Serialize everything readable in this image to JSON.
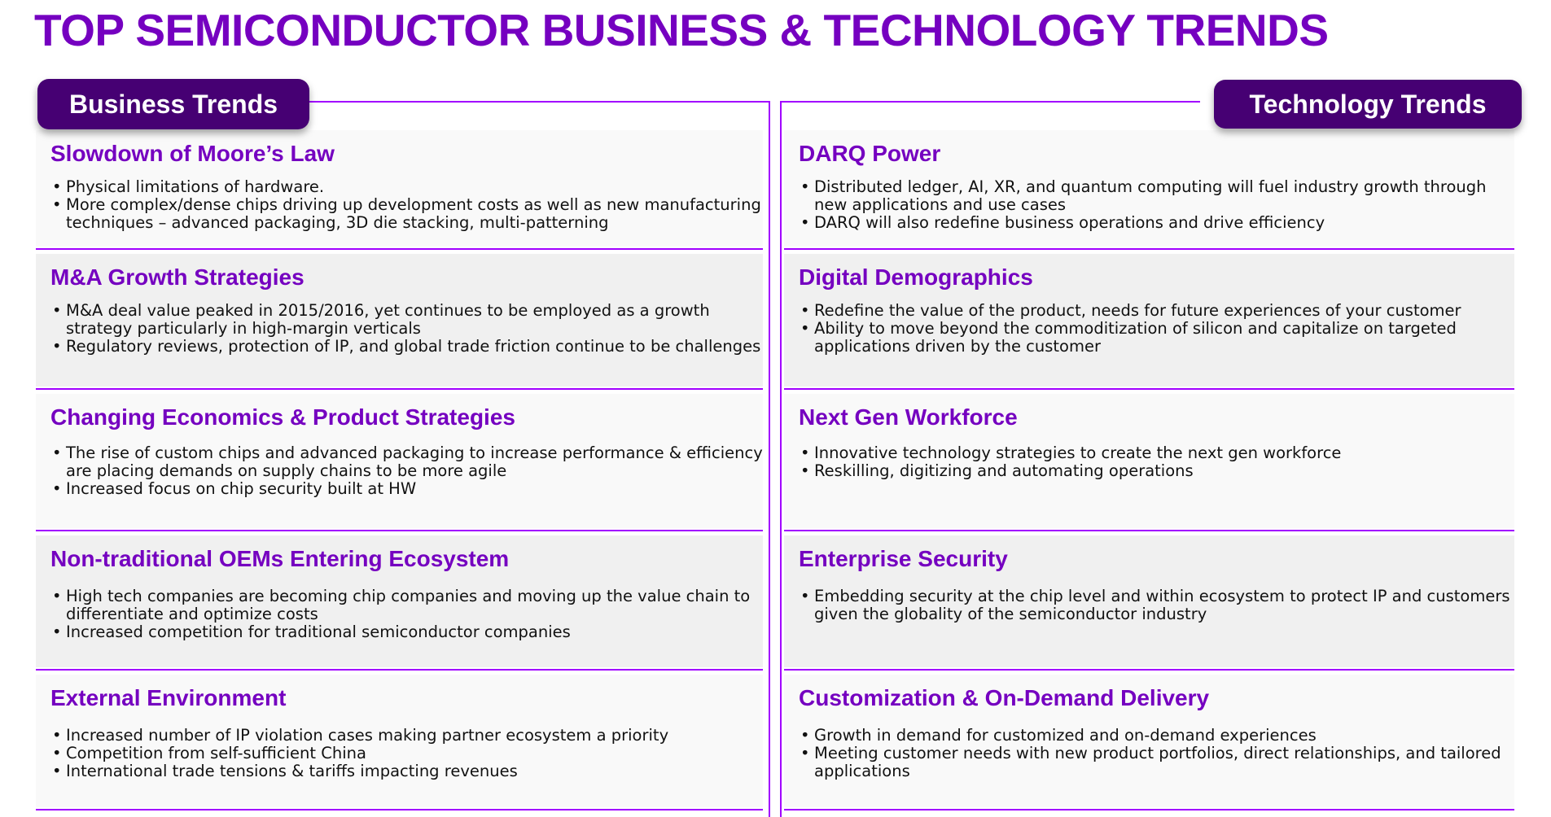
{
  "title": "TOP SEMICONDUCTOR BUSINESS & TECHNOLOGY TRENDS",
  "business": {
    "label": "Business Trends",
    "cards": [
      {
        "heading": "Slowdown of Moore’s Law",
        "bullets": [
          "Physical limitations of hardware.",
          "More complex/dense chips driving up development costs as well as new manufacturing techniques – advanced packaging, 3D die stacking, multi-patterning"
        ]
      },
      {
        "heading": "M&A Growth Strategies",
        "bullets": [
          "M&A deal value peaked in 2015/2016, yet continues to be employed as a growth strategy particularly in high-margin verticals",
          "Regulatory reviews, protection of IP, and global trade friction continue to be challenges"
        ]
      },
      {
        "heading": "Changing Economics & Product Strategies",
        "bullets": [
          "The rise of custom chips and advanced packaging to increase performance & efficiency are placing demands on supply chains to be more agile",
          "Increased focus on chip security built at HW"
        ]
      },
      {
        "heading": "Non-traditional OEMs Entering Ecosystem",
        "bullets": [
          "High tech companies are becoming chip companies and moving up the value chain to differentiate and optimize costs",
          "Increased competition for traditional semiconductor companies"
        ]
      },
      {
        "heading": "External Environment",
        "bullets": [
          "Increased number of IP violation cases making partner ecosystem a priority",
          "Competition from self-sufficient China",
          "International trade tensions & tariffs impacting revenues"
        ]
      }
    ]
  },
  "technology": {
    "label": "Technology Trends",
    "cards": [
      {
        "heading": "DARQ Power",
        "bullets": [
          "Distributed ledger, AI, XR, and quantum computing will fuel industry growth through new applications and use cases",
          "DARQ will also redefine business operations and drive efficiency"
        ]
      },
      {
        "heading": "Digital Demographics",
        "bullets": [
          "Redefine the value of the product, needs for future experiences of your customer",
          "Ability to move beyond the commoditization of silicon and capitalize on targeted applications driven by the customer"
        ]
      },
      {
        "heading": "Next Gen Workforce",
        "bullets": [
          "Innovative technology strategies to create the next gen workforce",
          "Reskilling, digitizing and automating operations"
        ]
      },
      {
        "heading": "Enterprise Security",
        "bullets": [
          "Embedding security at the chip level and within ecosystem to protect IP and customers given the globality of the semiconductor industry"
        ]
      },
      {
        "heading": "Customization & On-Demand Delivery",
        "bullets": [
          "Growth in demand for customized and on-demand experiences",
          "Meeting customer needs with new product portfolios, direct relationships, and tailored applications"
        ]
      }
    ]
  }
}
